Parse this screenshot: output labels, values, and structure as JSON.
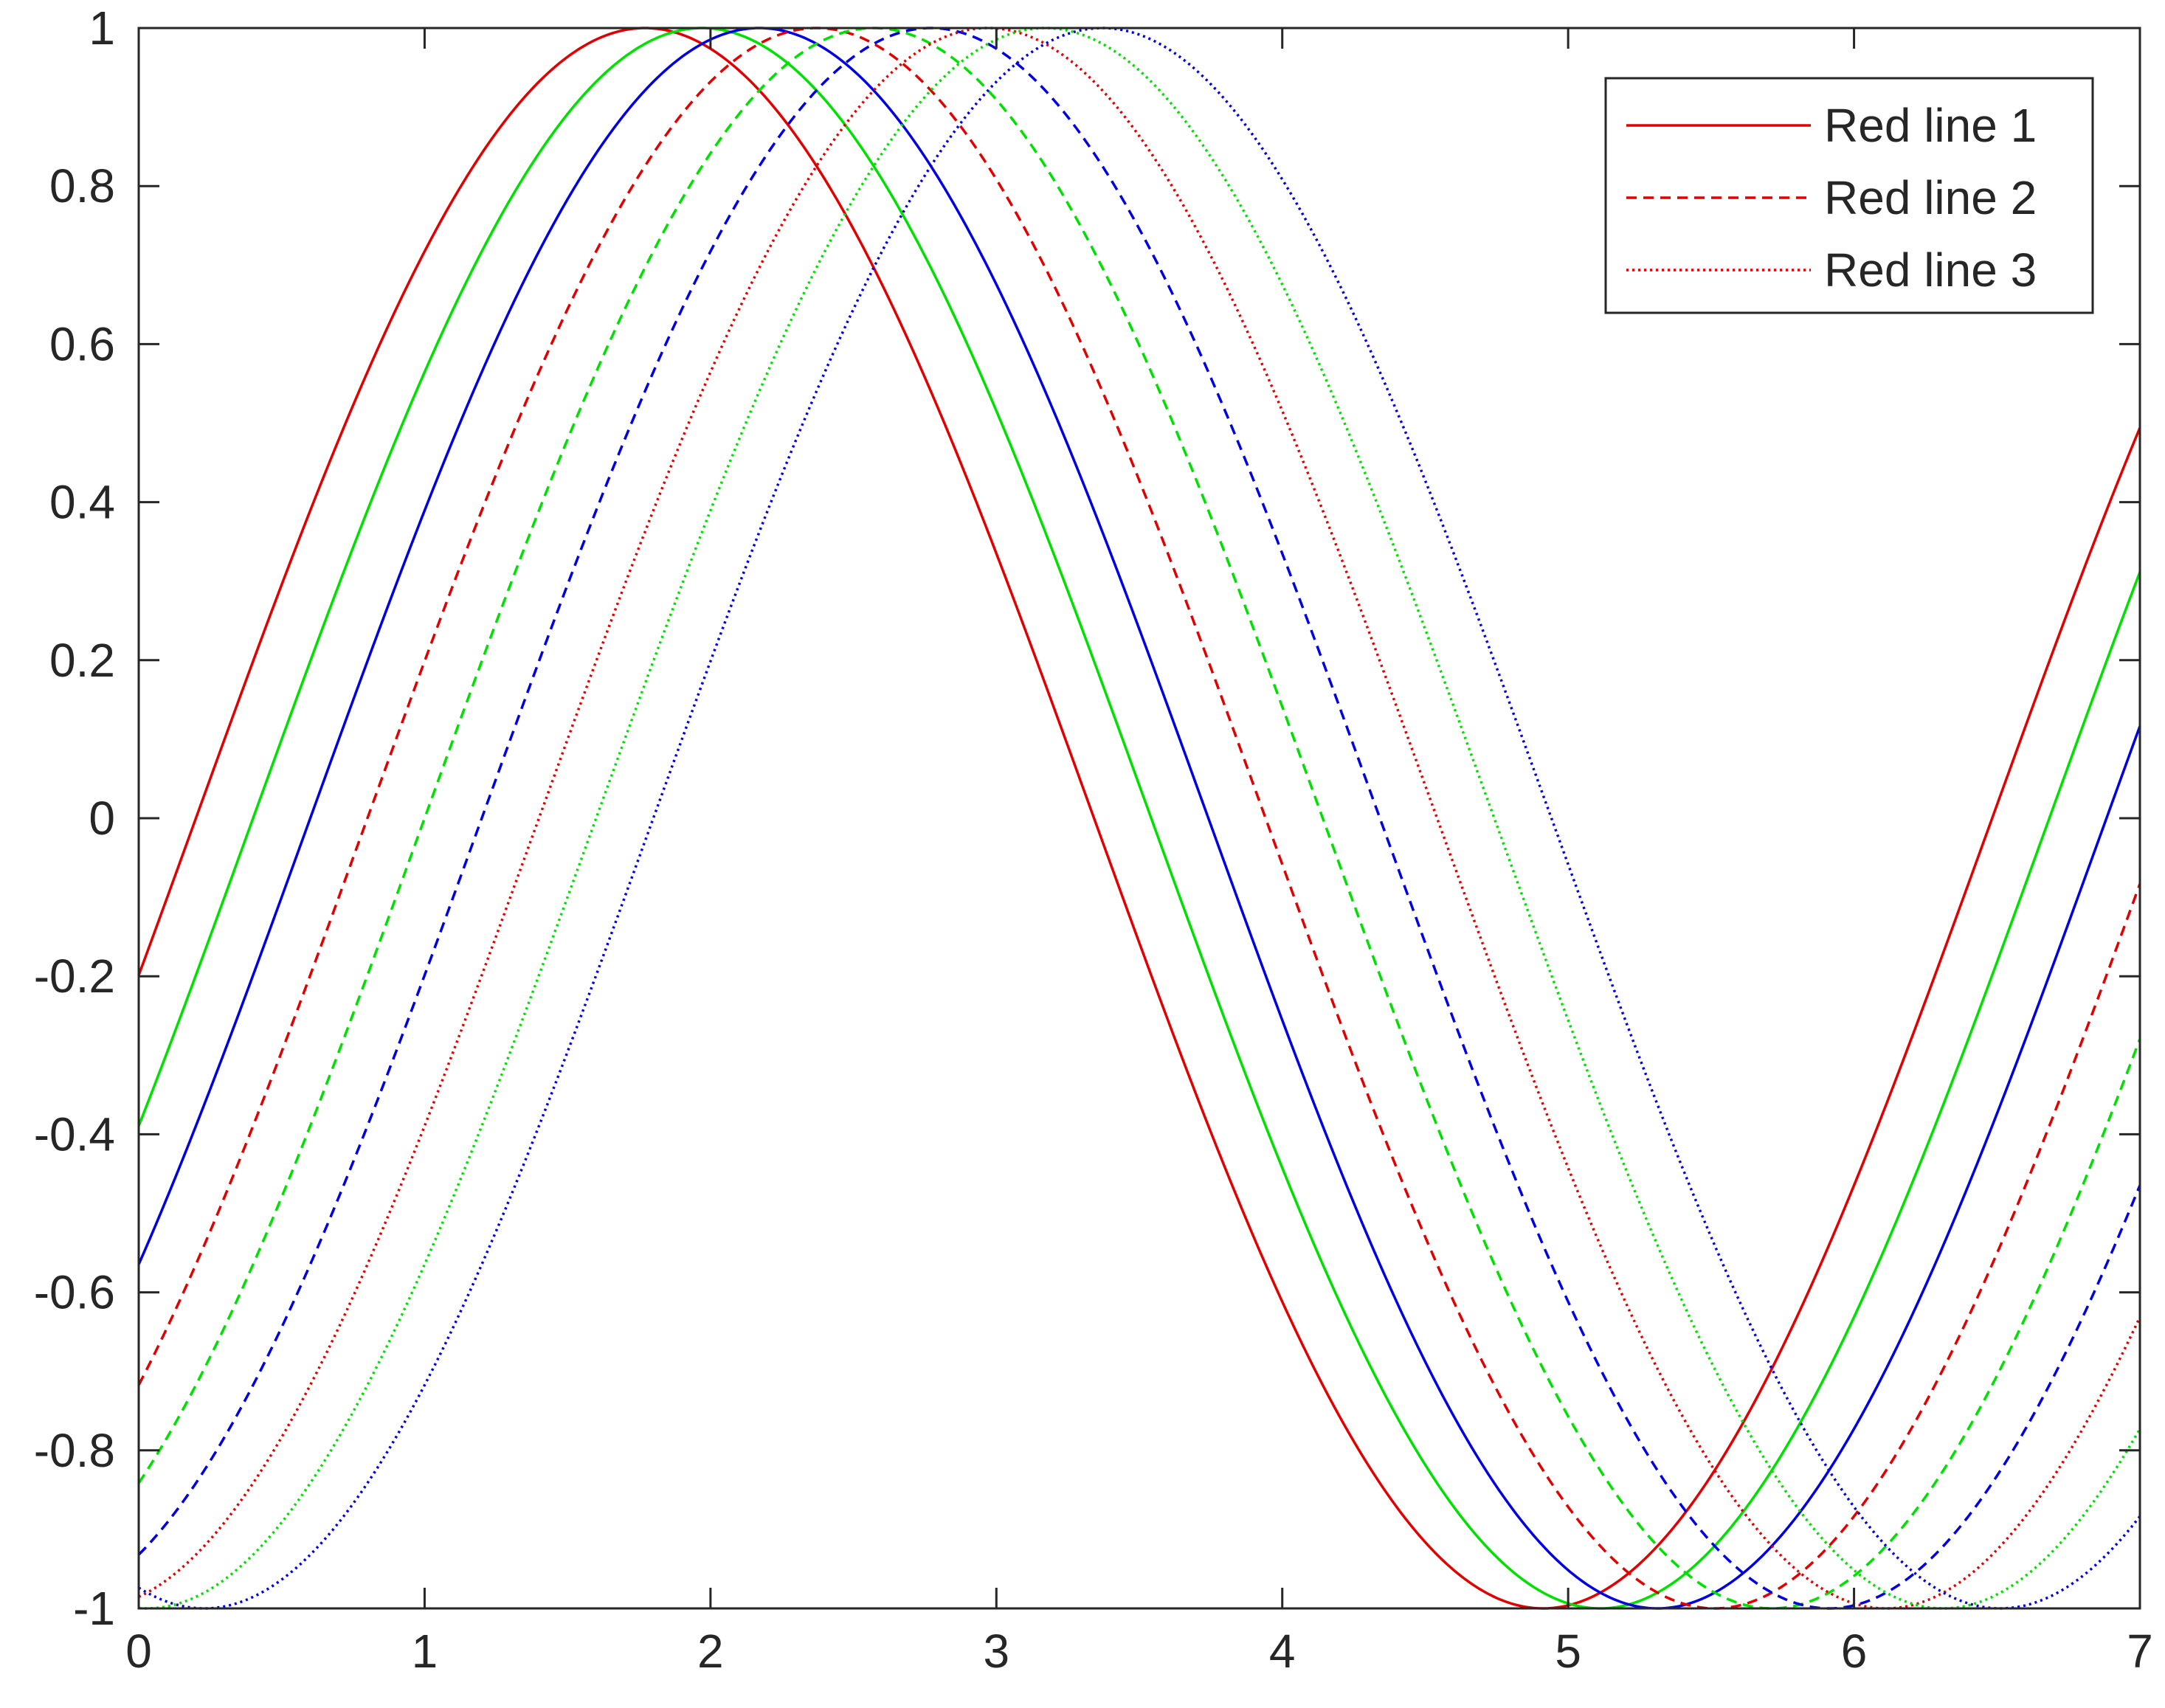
{
  "chart_data": {
    "type": "line",
    "title": "",
    "xlabel": "",
    "ylabel": "",
    "xlim": [
      0,
      7
    ],
    "ylim": [
      -1,
      1
    ],
    "x_ticks": [
      0,
      1,
      2,
      3,
      4,
      5,
      6,
      7
    ],
    "y_ticks": [
      -1,
      -0.8,
      -0.6,
      -0.4,
      -0.2,
      0,
      0.2,
      0.4,
      0.6,
      0.8,
      1
    ],
    "x_tick_labels": [
      "0",
      "1",
      "2",
      "3",
      "4",
      "5",
      "6",
      "7"
    ],
    "y_tick_labels": [
      "-1",
      "-0.8",
      "-0.6",
      "-0.4",
      "-0.2",
      "0",
      "0.2",
      "0.4",
      "0.6",
      "0.8",
      "1"
    ],
    "grid": false,
    "legend_position": "top-right",
    "legend": [
      {
        "label": "Red line 1",
        "color": "#E00000",
        "style": "solid"
      },
      {
        "label": "Red line 2",
        "color": "#E00000",
        "style": "dashed"
      },
      {
        "label": "Red line 3",
        "color": "#E00000",
        "style": "dotted"
      }
    ],
    "function": "y = sin(x - phase)",
    "series": [
      {
        "color": "#E00000",
        "style": "solid",
        "phase": 0.2
      },
      {
        "color": "#00E000",
        "style": "solid",
        "phase": 0.4
      },
      {
        "color": "#0000E0",
        "style": "solid",
        "phase": 0.6
      },
      {
        "color": "#E00000",
        "style": "dashed",
        "phase": 0.8
      },
      {
        "color": "#00E000",
        "style": "dashed",
        "phase": 1.0
      },
      {
        "color": "#0000E0",
        "style": "dashed",
        "phase": 1.2
      },
      {
        "color": "#E00000",
        "style": "dotted",
        "phase": 1.4
      },
      {
        "color": "#00E000",
        "style": "dotted",
        "phase": 1.6
      },
      {
        "color": "#0000E0",
        "style": "dotted",
        "phase": 1.8
      }
    ]
  }
}
